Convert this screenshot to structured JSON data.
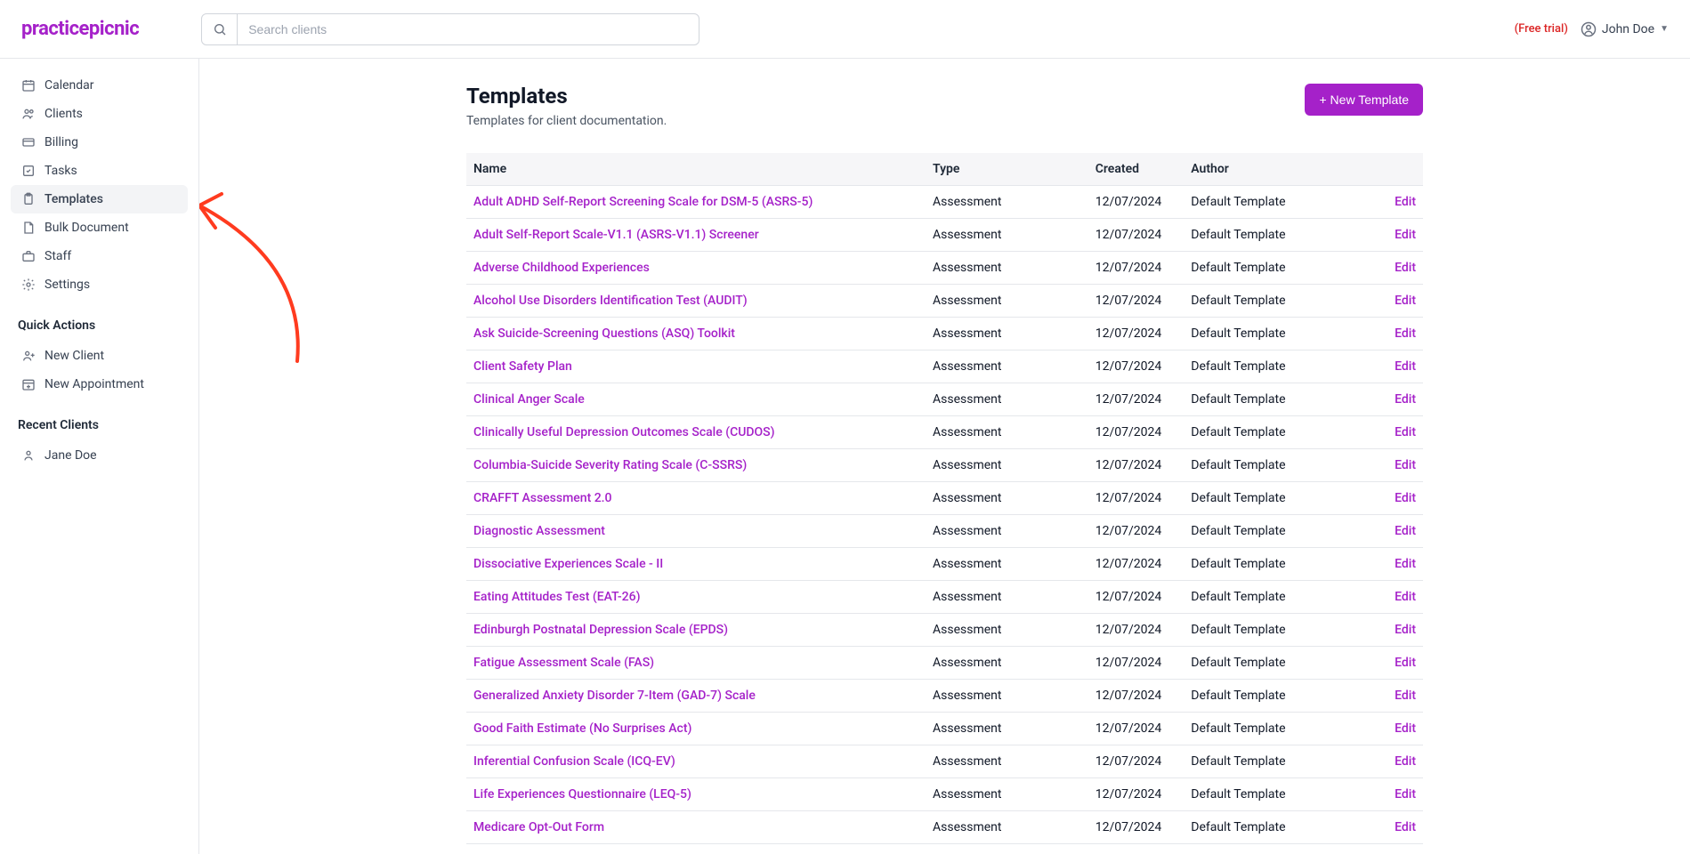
{
  "brand": {
    "name": "practicepicnic",
    "color": "#a521c9"
  },
  "search": {
    "placeholder": "Search clients"
  },
  "header": {
    "trial_label": "(Free trial)",
    "user_name": "John Doe"
  },
  "nav": {
    "items": [
      {
        "key": "calendar",
        "label": "Calendar",
        "icon": "calendar"
      },
      {
        "key": "clients",
        "label": "Clients",
        "icon": "people"
      },
      {
        "key": "billing",
        "label": "Billing",
        "icon": "card"
      },
      {
        "key": "tasks",
        "label": "Tasks",
        "icon": "check"
      },
      {
        "key": "templates",
        "label": "Templates",
        "icon": "clipboard",
        "active": true
      },
      {
        "key": "bulk",
        "label": "Bulk Document",
        "icon": "file"
      },
      {
        "key": "staff",
        "label": "Staff",
        "icon": "briefcase"
      },
      {
        "key": "settings",
        "label": "Settings",
        "icon": "gear"
      }
    ],
    "quick_actions_label": "Quick Actions",
    "quick_actions": [
      {
        "key": "new_client",
        "label": "New Client",
        "icon": "user-plus"
      },
      {
        "key": "new_appt",
        "label": "New Appointment",
        "icon": "cal-plus"
      }
    ],
    "recent_clients_label": "Recent Clients",
    "recent_clients": [
      {
        "key": "jane",
        "label": "Jane Doe",
        "icon": "user"
      }
    ]
  },
  "page": {
    "title": "Templates",
    "subtitle": "Templates for client documentation.",
    "new_button": "+ New Template"
  },
  "table": {
    "columns": [
      "Name",
      "Type",
      "Created",
      "Author",
      ""
    ],
    "edit_label": "Edit",
    "rows": [
      {
        "name": "Adult ADHD Self-Report Screening Scale for DSM-5 (ASRS-5)",
        "type": "Assessment",
        "created": "12/07/2024",
        "author": "Default Template"
      },
      {
        "name": "Adult Self-Report Scale-V1.1 (ASRS-V1.1) Screener",
        "type": "Assessment",
        "created": "12/07/2024",
        "author": "Default Template"
      },
      {
        "name": "Adverse Childhood Experiences",
        "type": "Assessment",
        "created": "12/07/2024",
        "author": "Default Template"
      },
      {
        "name": "Alcohol Use Disorders Identification Test (AUDIT)",
        "type": "Assessment",
        "created": "12/07/2024",
        "author": "Default Template"
      },
      {
        "name": "Ask Suicide-Screening Questions (ASQ) Toolkit",
        "type": "Assessment",
        "created": "12/07/2024",
        "author": "Default Template"
      },
      {
        "name": "Client Safety Plan",
        "type": "Assessment",
        "created": "12/07/2024",
        "author": "Default Template"
      },
      {
        "name": "Clinical Anger Scale",
        "type": "Assessment",
        "created": "12/07/2024",
        "author": "Default Template"
      },
      {
        "name": "Clinically Useful Depression Outcomes Scale (CUDOS)",
        "type": "Assessment",
        "created": "12/07/2024",
        "author": "Default Template"
      },
      {
        "name": "Columbia-Suicide Severity Rating Scale (C-SSRS)",
        "type": "Assessment",
        "created": "12/07/2024",
        "author": "Default Template"
      },
      {
        "name": "CRAFFT Assessment 2.0",
        "type": "Assessment",
        "created": "12/07/2024",
        "author": "Default Template"
      },
      {
        "name": "Diagnostic Assessment",
        "type": "Assessment",
        "created": "12/07/2024",
        "author": "Default Template"
      },
      {
        "name": "Dissociative Experiences Scale - II",
        "type": "Assessment",
        "created": "12/07/2024",
        "author": "Default Template"
      },
      {
        "name": "Eating Attitudes Test (EAT-26)",
        "type": "Assessment",
        "created": "12/07/2024",
        "author": "Default Template"
      },
      {
        "name": "Edinburgh Postnatal Depression Scale (EPDS)",
        "type": "Assessment",
        "created": "12/07/2024",
        "author": "Default Template"
      },
      {
        "name": "Fatigue Assessment Scale (FAS)",
        "type": "Assessment",
        "created": "12/07/2024",
        "author": "Default Template"
      },
      {
        "name": "Generalized Anxiety Disorder 7-Item (GAD-7) Scale",
        "type": "Assessment",
        "created": "12/07/2024",
        "author": "Default Template"
      },
      {
        "name": "Good Faith Estimate (No Surprises Act)",
        "type": "Assessment",
        "created": "12/07/2024",
        "author": "Default Template"
      },
      {
        "name": "Inferential Confusion Scale (ICQ-EV)",
        "type": "Assessment",
        "created": "12/07/2024",
        "author": "Default Template"
      },
      {
        "name": "Life Experiences Questionnaire (LEQ-5)",
        "type": "Assessment",
        "created": "12/07/2024",
        "author": "Default Template"
      },
      {
        "name": "Medicare Opt-Out Form",
        "type": "Assessment",
        "created": "12/07/2024",
        "author": "Default Template"
      }
    ]
  },
  "annotation": {
    "arrow_color": "#ff3b1f"
  }
}
